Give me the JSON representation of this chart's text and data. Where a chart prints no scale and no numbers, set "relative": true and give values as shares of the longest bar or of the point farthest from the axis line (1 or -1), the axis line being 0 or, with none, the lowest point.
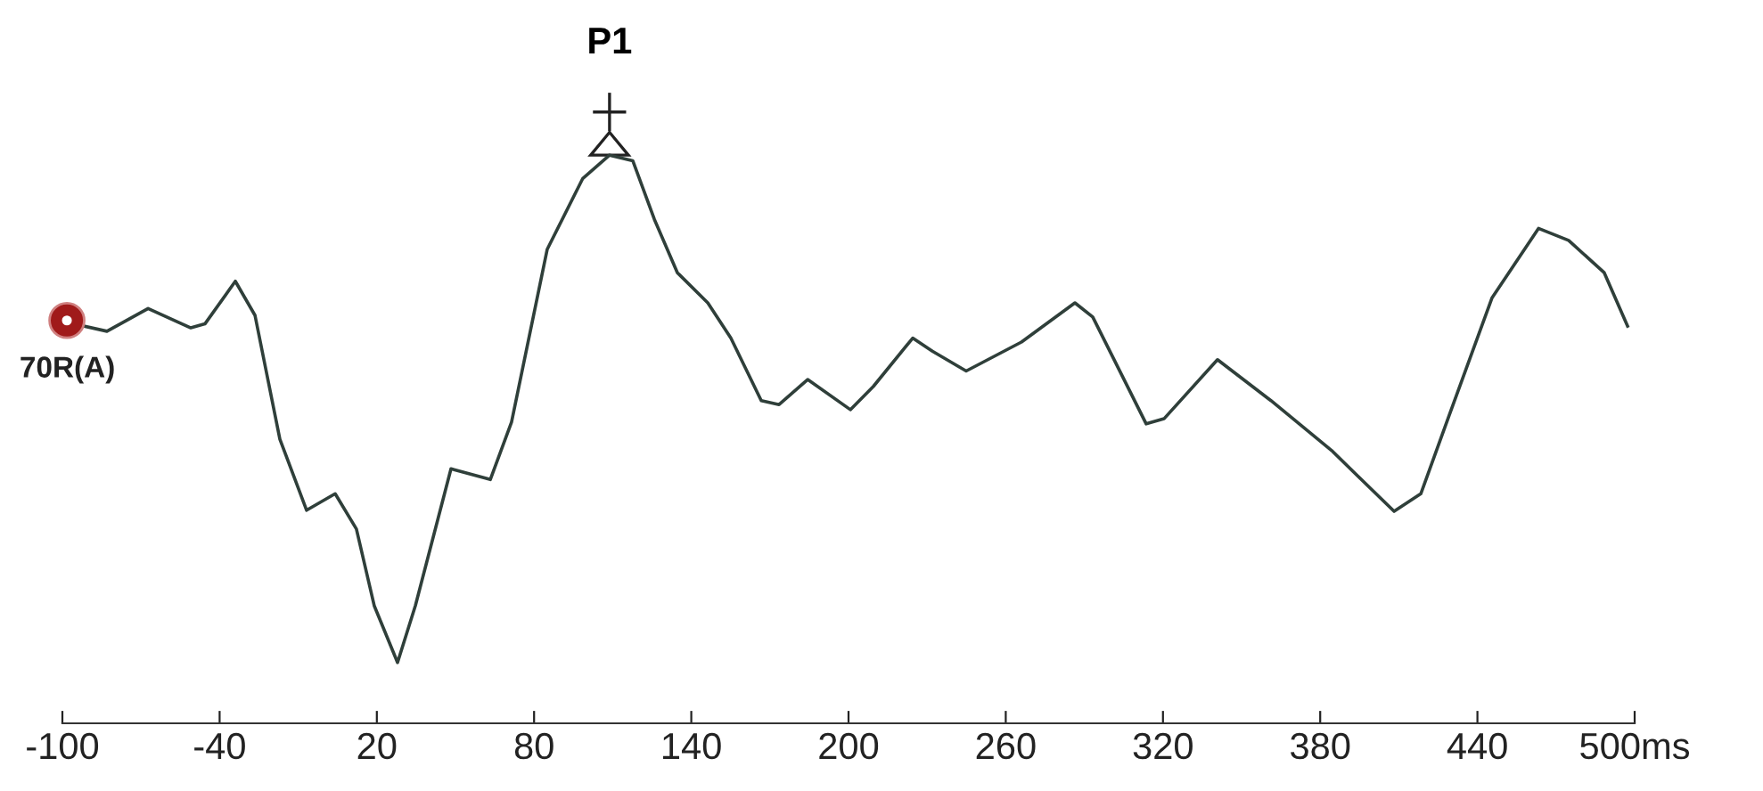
{
  "chart_data": {
    "type": "line",
    "relative": true,
    "tick_labels": "x",
    "grid": false,
    "legend": false,
    "marker": "none",
    "line_style": "solid",
    "xlim": [
      -100,
      500
    ],
    "xticks": [
      -100,
      -40,
      20,
      80,
      140,
      200,
      260,
      320,
      380,
      440,
      {
        "value": 500,
        "label": "500ms"
      }
    ],
    "annotations": [
      {
        "text": "P1",
        "x": 108.8,
        "y": 1
      }
    ],
    "series": [
      {
        "name": "70R(A)",
        "color": "#2f3f3a",
        "x": [
          -91.8,
          -83.0,
          -67.3,
          -51.0,
          -45.6,
          -34.0,
          -26.5,
          -17.0,
          -6.8,
          4.1,
          12.2,
          19.0,
          27.9,
          34.7,
          48.3,
          63.3,
          71.4,
          85.0,
          98.6,
          108.8,
          117.7,
          125.9,
          134.7,
          146.3,
          155.1,
          166.7,
          173.5,
          184.4,
          200.7,
          209.5,
          224.5,
          232.0,
          244.9,
          266.0,
          286.4,
          293.2,
          313.6,
          320.4,
          340.8,
          361.2,
          384.4,
          408.2,
          418.4,
          429.3,
          445.6,
          463.3,
          474.8,
          488.4,
          497.3
        ],
        "values": [
          0.699,
          0.69,
          0.73,
          0.696,
          0.703,
          0.778,
          0.718,
          0.5,
          0.375,
          0.404,
          0.342,
          0.207,
          0.107,
          0.207,
          0.448,
          0.429,
          0.53,
          0.834,
          0.959,
          1,
          0.99,
          0.887,
          0.793,
          0.74,
          0.678,
          0.568,
          0.561,
          0.605,
          0.552,
          0.593,
          0.678,
          0.655,
          0.62,
          0.671,
          0.74,
          0.715,
          0.527,
          0.536,
          0.64,
          0.568,
          0.48,
          0.373,
          0.404,
          0.543,
          0.749,
          0.871,
          0.85,
          0.793,
          0.699
        ]
      }
    ]
  }
}
